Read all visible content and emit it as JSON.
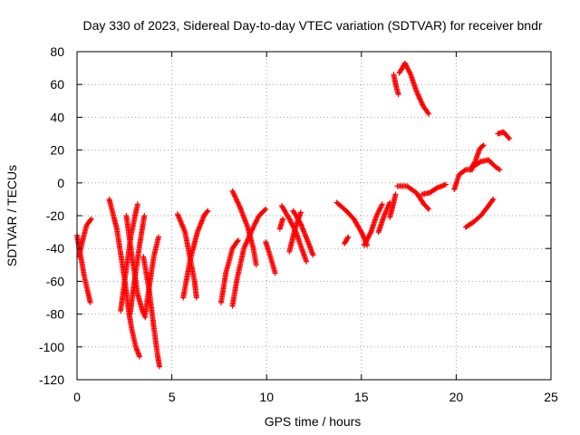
{
  "chart_data": {
    "type": "scatter",
    "title": "Day 330 of 2023, Sidereal Day-to-day VTEC variation (SDTVAR) for receiver bndr",
    "xlabel": "GPS time / hours",
    "ylabel": "SDTVAR / TECUs",
    "xlim": [
      0,
      25
    ],
    "ylim": [
      -120,
      80
    ],
    "xticks": [
      "0",
      "5",
      "10",
      "15",
      "20",
      "25"
    ],
    "yticks": [
      "-120",
      "-100",
      "-80",
      "-60",
      "-40",
      "-20",
      "0",
      "20",
      "40",
      "60",
      "80"
    ],
    "grid": true,
    "marker": "+",
    "series": [
      {
        "name": "SDTVAR",
        "color": "#ff0000",
        "arcs": [
          [
            [
              0.0,
              -32
            ],
            [
              0.2,
              -45
            ],
            [
              0.4,
              -58
            ],
            [
              0.6,
              -68
            ],
            [
              0.7,
              -73
            ]
          ],
          [
            [
              0.1,
              -45
            ],
            [
              0.3,
              -35
            ],
            [
              0.5,
              -26
            ],
            [
              0.75,
              -22
            ]
          ],
          [
            [
              1.7,
              -10
            ],
            [
              2.1,
              -28
            ],
            [
              2.5,
              -58
            ],
            [
              2.75,
              -80
            ],
            [
              2.9,
              -90
            ],
            [
              3.1,
              -100
            ],
            [
              3.3,
              -106
            ]
          ],
          [
            [
              2.3,
              -78
            ],
            [
              2.6,
              -52
            ],
            [
              2.85,
              -32
            ],
            [
              3.1,
              -18
            ],
            [
              3.2,
              -13
            ]
          ],
          [
            [
              2.6,
              -20
            ],
            [
              2.9,
              -45
            ],
            [
              3.2,
              -68
            ],
            [
              3.45,
              -78
            ],
            [
              3.6,
              -82
            ]
          ],
          [
            [
              2.8,
              -80
            ],
            [
              3.05,
              -58
            ],
            [
              3.3,
              -38
            ],
            [
              3.55,
              -20
            ]
          ],
          [
            [
              3.5,
              -45
            ],
            [
              3.8,
              -65
            ],
            [
              4.05,
              -88
            ],
            [
              4.25,
              -105
            ],
            [
              4.35,
              -112
            ]
          ],
          [
            [
              3.6,
              -80
            ],
            [
              3.85,
              -60
            ],
            [
              4.05,
              -45
            ],
            [
              4.3,
              -33
            ]
          ],
          [
            [
              5.3,
              -19
            ],
            [
              5.7,
              -30
            ],
            [
              6.0,
              -48
            ],
            [
              6.2,
              -60
            ],
            [
              6.3,
              -70
            ]
          ],
          [
            [
              5.6,
              -70
            ],
            [
              5.95,
              -48
            ],
            [
              6.35,
              -30
            ],
            [
              6.7,
              -20
            ],
            [
              6.9,
              -17
            ]
          ],
          [
            [
              7.6,
              -73
            ],
            [
              7.85,
              -55
            ],
            [
              8.2,
              -40
            ],
            [
              8.5,
              -35
            ]
          ],
          [
            [
              8.2,
              -5
            ],
            [
              8.6,
              -15
            ],
            [
              9.0,
              -27
            ],
            [
              9.3,
              -40
            ],
            [
              9.45,
              -50
            ]
          ],
          [
            [
              8.2,
              -75
            ],
            [
              8.45,
              -58
            ],
            [
              8.8,
              -40
            ],
            [
              9.3,
              -27
            ],
            [
              9.6,
              -20
            ],
            [
              9.95,
              -16
            ]
          ],
          [
            [
              9.95,
              -36
            ],
            [
              10.2,
              -45
            ],
            [
              10.45,
              -55
            ]
          ],
          [
            [
              10.7,
              -28
            ],
            [
              10.85,
              -22
            ]
          ],
          [
            [
              10.8,
              -14
            ],
            [
              11.2,
              -22
            ],
            [
              11.55,
              -30
            ],
            [
              11.85,
              -40
            ],
            [
              12.1,
              -48
            ]
          ],
          [
            [
              11.2,
              -42
            ],
            [
              11.5,
              -28
            ],
            [
              11.8,
              -18
            ]
          ],
          [
            [
              11.4,
              -17
            ],
            [
              11.8,
              -25
            ],
            [
              12.15,
              -35
            ],
            [
              12.45,
              -44
            ]
          ],
          [
            [
              13.7,
              -12
            ],
            [
              14.2,
              -17
            ],
            [
              14.6,
              -22
            ],
            [
              15.0,
              -30
            ],
            [
              15.3,
              -38
            ]
          ],
          [
            [
              14.1,
              -37
            ],
            [
              14.3,
              -33
            ]
          ],
          [
            [
              15.15,
              -38
            ],
            [
              15.5,
              -30
            ],
            [
              15.8,
              -20
            ],
            [
              16.1,
              -13
            ]
          ],
          [
            [
              15.9,
              -30
            ],
            [
              16.2,
              -20
            ],
            [
              16.5,
              -12
            ]
          ],
          [
            [
              16.5,
              -21
            ],
            [
              16.7,
              -12
            ],
            [
              16.8,
              -7
            ]
          ],
          [
            [
              16.7,
              66
            ],
            [
              16.85,
              58
            ],
            [
              16.95,
              54
            ]
          ],
          [
            [
              17.0,
              67
            ],
            [
              17.3,
              73
            ],
            [
              17.6,
              66
            ],
            [
              17.9,
              56
            ],
            [
              18.25,
              47
            ],
            [
              18.55,
              42
            ]
          ],
          [
            [
              16.9,
              -2
            ],
            [
              17.4,
              -2
            ],
            [
              17.9,
              -6
            ],
            [
              18.3,
              -13
            ],
            [
              18.55,
              -16
            ]
          ],
          [
            [
              18.2,
              -7
            ],
            [
              18.6,
              -6
            ],
            [
              19.0,
              -3
            ],
            [
              19.45,
              -1
            ]
          ],
          [
            [
              19.9,
              -4
            ],
            [
              20.15,
              5
            ],
            [
              20.5,
              8
            ],
            [
              20.85,
              8
            ]
          ],
          [
            [
              20.5,
              -27
            ],
            [
              20.9,
              -24
            ],
            [
              21.3,
              -20
            ],
            [
              21.7,
              -14
            ],
            [
              21.95,
              -10
            ]
          ],
          [
            [
              20.75,
              8
            ],
            [
              21.0,
              13
            ],
            [
              21.25,
              21
            ],
            [
              21.45,
              23
            ]
          ],
          [
            [
              20.9,
              10
            ],
            [
              21.3,
              13
            ],
            [
              21.7,
              14
            ],
            [
              22.05,
              10
            ],
            [
              22.3,
              8
            ]
          ],
          [
            [
              22.2,
              30
            ],
            [
              22.5,
              31
            ],
            [
              22.8,
              27
            ]
          ]
        ]
      }
    ]
  }
}
